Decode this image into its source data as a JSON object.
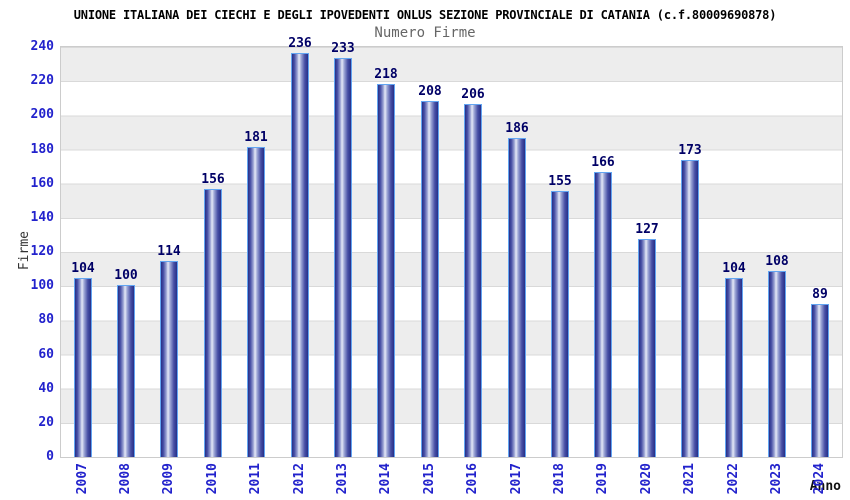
{
  "chart_data": {
    "type": "bar",
    "title": "UNIONE ITALIANA DEI CIECHI E DEGLI IPOVEDENTI ONLUS SEZIONE PROVINCIALE DI CATANIA (c.f.80009690878)",
    "subtitle": "Numero Firme",
    "xlabel": "Anno",
    "ylabel": "Firme",
    "categories": [
      "2007",
      "2008",
      "2009",
      "2010",
      "2011",
      "2012",
      "2013",
      "2014",
      "2015",
      "2016",
      "2017",
      "2018",
      "2019",
      "2020",
      "2021",
      "2022",
      "2023",
      "2024"
    ],
    "values": [
      104,
      100,
      114,
      156,
      181,
      236,
      233,
      218,
      208,
      206,
      186,
      155,
      166,
      127,
      173,
      104,
      108,
      89
    ],
    "ylim": [
      0,
      240
    ],
    "ytick_step": 20,
    "grid": "horizontal",
    "legend": "none",
    "colors": {
      "bar_dark": "#272f87",
      "bar_mid": "#474fa5",
      "bar_highlight": "#e6e9f7",
      "bar_border": "#62a5f2",
      "axis_text": "#2222cc",
      "value_label": "#000066",
      "title_text": "#000000",
      "subtitle_text": "#666666",
      "band_gray": "#ededed",
      "gridline": "#d9d9d9",
      "plot_border": "#cccccc"
    }
  }
}
